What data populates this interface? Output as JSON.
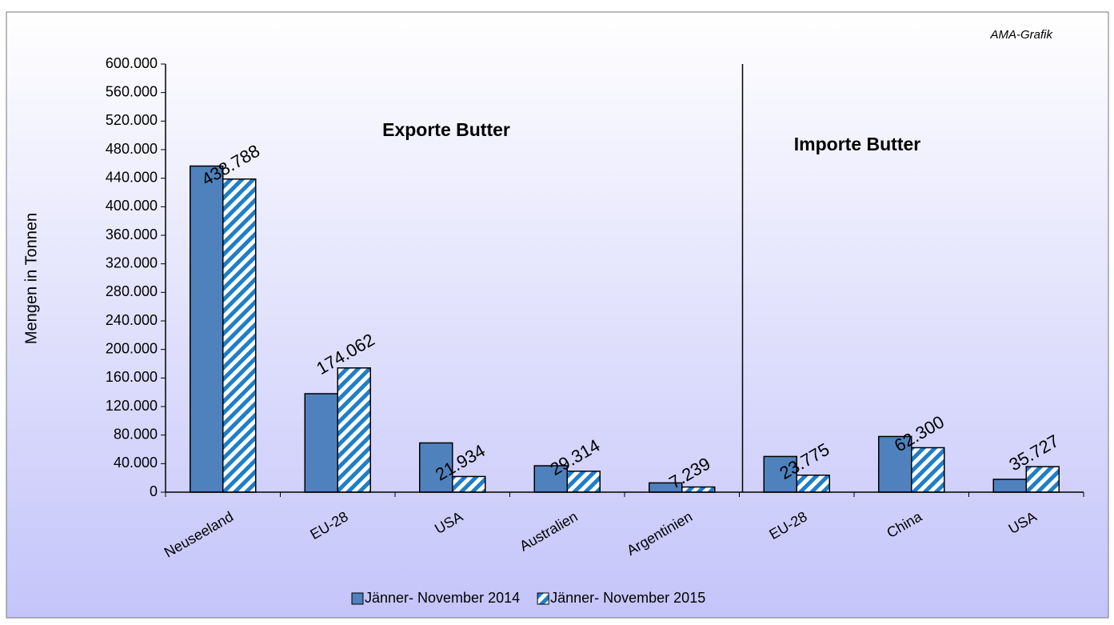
{
  "chart_data": {
    "type": "bar",
    "annotations": {
      "source": "AMA-Grafik",
      "exports": "Exporte Butter",
      "imports": "Importe Butter"
    },
    "y_label": "Mengen in Tonnen",
    "categories": [
      "Neuseeland",
      "EU-28",
      "USA",
      "Australien",
      "Argentinien",
      "EU-28",
      "China",
      "USA"
    ],
    "series": [
      {
        "name": "Jänner- November 2014",
        "color": "#4f81bd",
        "pattern": "solid",
        "values": [
          457000,
          138000,
          69000,
          37000,
          13000,
          50000,
          78000,
          18000
        ]
      },
      {
        "name": "Jänner- November 2015",
        "color": "#1f7ec8",
        "pattern": "hatch",
        "values": [
          438788,
          174062,
          21934,
          29314,
          7239,
          23775,
          62300,
          35727
        ],
        "value_labels": [
          "438.788",
          "174.062",
          "21.934",
          "29.314",
          "7.239",
          "23.775",
          "62.300",
          "35.727"
        ]
      }
    ],
    "ylim": [
      0,
      600000
    ],
    "yticks": [
      {
        "value": 0,
        "label": "0"
      },
      {
        "value": 40000,
        "label": "40.000"
      },
      {
        "value": 80000,
        "label": "80.000"
      },
      {
        "value": 120000,
        "label": "120.000"
      },
      {
        "value": 160000,
        "label": "160.000"
      },
      {
        "value": 200000,
        "label": "200.000"
      },
      {
        "value": 240000,
        "label": "240.000"
      },
      {
        "value": 280000,
        "label": "280.000"
      },
      {
        "value": 320000,
        "label": "320.000"
      },
      {
        "value": 360000,
        "label": "360.000"
      },
      {
        "value": 400000,
        "label": "400.000"
      },
      {
        "value": 440000,
        "label": "440.000"
      },
      {
        "value": 480000,
        "label": "480.000"
      },
      {
        "value": 520000,
        "label": "520.000"
      },
      {
        "value": 560000,
        "label": "560.000"
      },
      {
        "value": 600000,
        "label": "600.000"
      }
    ],
    "legend": "bottom"
  }
}
